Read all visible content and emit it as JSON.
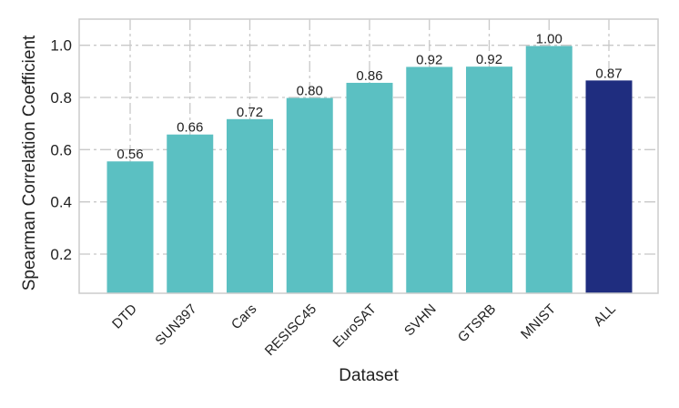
{
  "chart_data": {
    "type": "bar",
    "title": "",
    "xlabel": "Dataset",
    "ylabel": "Spearman Correlation Coefficient",
    "categories": [
      "DTD",
      "SUN397",
      "Cars",
      "RESISC45",
      "EuroSAT",
      "SVHN",
      "GTSRB",
      "MNIST",
      "ALL"
    ],
    "values": [
      0.555,
      0.658,
      0.717,
      0.798,
      0.856,
      0.917,
      0.918,
      0.997,
      0.865
    ],
    "data_labels": [
      "0.56",
      "0.66",
      "0.72",
      "0.80",
      "0.86",
      "0.92",
      "0.92",
      "1.00",
      "0.87"
    ],
    "ylim": [
      0.05,
      1.1
    ],
    "yticks": [
      0.2,
      0.4,
      0.6,
      0.8,
      1.0
    ],
    "ytick_labels": [
      "0.2",
      "0.4",
      "0.6",
      "0.8",
      "1.0"
    ],
    "grid": true,
    "colors": {
      "default_bar": "#5bc0c2",
      "highlight_bar": "#1f2d7f",
      "highlight_category": "ALL",
      "grid": "#c8c8c8",
      "frame": "#cccccc"
    }
  }
}
